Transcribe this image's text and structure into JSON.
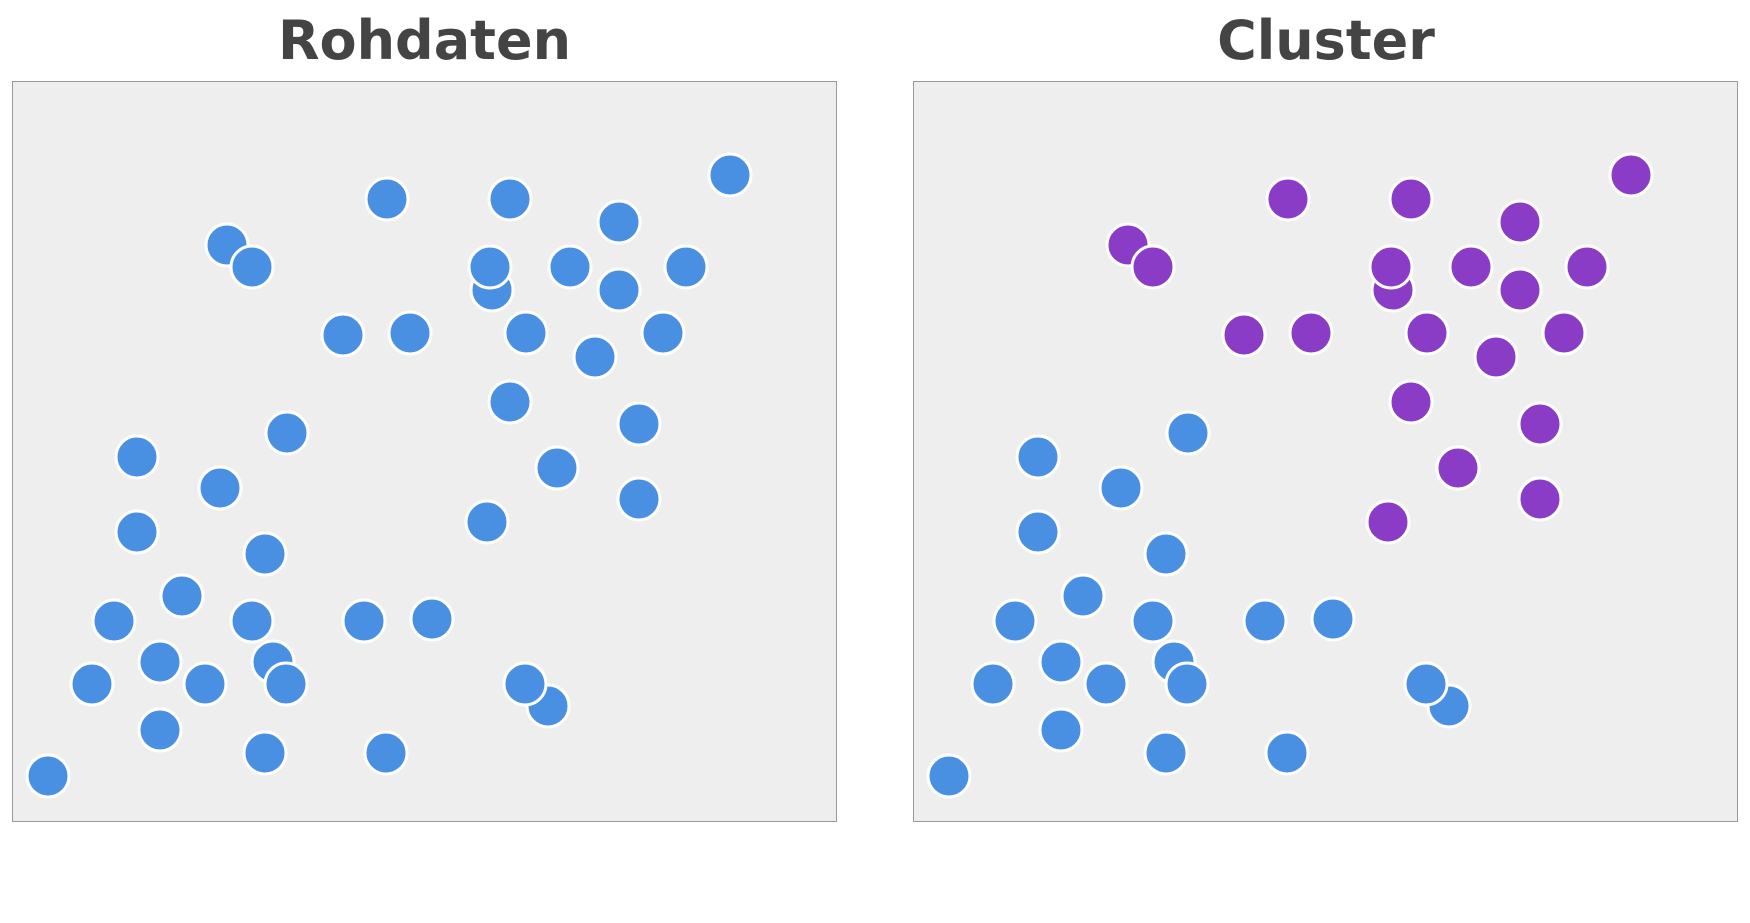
{
  "chart_data": [
    {
      "type": "scatter",
      "title": "Rohdaten",
      "xlim": [
        0,
        825
      ],
      "ylim": [
        0,
        741
      ],
      "colors": {
        "background": "#eeeeee",
        "border": "#999999",
        "point": "#4a90e2",
        "outline": "#ffffff"
      },
      "points": [
        {
          "x": 718,
          "y": 647
        },
        {
          "x": 375,
          "y": 623
        },
        {
          "x": 498,
          "y": 623
        },
        {
          "x": 607,
          "y": 600
        },
        {
          "x": 215,
          "y": 577
        },
        {
          "x": 240,
          "y": 555
        },
        {
          "x": 480,
          "y": 532
        },
        {
          "x": 478,
          "y": 555
        },
        {
          "x": 558,
          "y": 555
        },
        {
          "x": 607,
          "y": 532
        },
        {
          "x": 674,
          "y": 555
        },
        {
          "x": 331,
          "y": 487
        },
        {
          "x": 398,
          "y": 489
        },
        {
          "x": 514,
          "y": 489
        },
        {
          "x": 583,
          "y": 465
        },
        {
          "x": 651,
          "y": 489
        },
        {
          "x": 498,
          "y": 420
        },
        {
          "x": 627,
          "y": 398
        },
        {
          "x": 275,
          "y": 389
        },
        {
          "x": 125,
          "y": 365
        },
        {
          "x": 208,
          "y": 334
        },
        {
          "x": 545,
          "y": 354
        },
        {
          "x": 627,
          "y": 323
        },
        {
          "x": 125,
          "y": 290
        },
        {
          "x": 253,
          "y": 268
        },
        {
          "x": 475,
          "y": 300
        },
        {
          "x": 170,
          "y": 226
        },
        {
          "x": 102,
          "y": 201
        },
        {
          "x": 240,
          "y": 201
        },
        {
          "x": 352,
          "y": 201
        },
        {
          "x": 420,
          "y": 203
        },
        {
          "x": 148,
          "y": 160
        },
        {
          "x": 193,
          "y": 138
        },
        {
          "x": 261,
          "y": 160
        },
        {
          "x": 274,
          "y": 138
        },
        {
          "x": 80,
          "y": 138
        },
        {
          "x": 536,
          "y": 116
        },
        {
          "x": 513,
          "y": 138
        },
        {
          "x": 148,
          "y": 92
        },
        {
          "x": 253,
          "y": 69
        },
        {
          "x": 374,
          "y": 69
        },
        {
          "x": 36,
          "y": 46
        }
      ]
    },
    {
      "type": "scatter",
      "title": "Cluster",
      "xlim": [
        0,
        825
      ],
      "ylim": [
        0,
        741
      ],
      "colors": {
        "background": "#eeeeee",
        "border": "#999999",
        "outline": "#ffffff",
        "cluster_1": "#8a3cc6",
        "cluster_2": "#4a90e2"
      },
      "points": [
        {
          "x": 718,
          "y": 647,
          "cluster": 1
        },
        {
          "x": 375,
          "y": 623,
          "cluster": 1
        },
        {
          "x": 498,
          "y": 623,
          "cluster": 1
        },
        {
          "x": 607,
          "y": 600,
          "cluster": 1
        },
        {
          "x": 215,
          "y": 577,
          "cluster": 1
        },
        {
          "x": 240,
          "y": 555,
          "cluster": 1
        },
        {
          "x": 480,
          "y": 532,
          "cluster": 1
        },
        {
          "x": 478,
          "y": 555,
          "cluster": 1
        },
        {
          "x": 558,
          "y": 555,
          "cluster": 1
        },
        {
          "x": 607,
          "y": 532,
          "cluster": 1
        },
        {
          "x": 674,
          "y": 555,
          "cluster": 1
        },
        {
          "x": 331,
          "y": 487,
          "cluster": 1
        },
        {
          "x": 398,
          "y": 489,
          "cluster": 1
        },
        {
          "x": 514,
          "y": 489,
          "cluster": 1
        },
        {
          "x": 583,
          "y": 465,
          "cluster": 1
        },
        {
          "x": 651,
          "y": 489,
          "cluster": 1
        },
        {
          "x": 498,
          "y": 420,
          "cluster": 1
        },
        {
          "x": 627,
          "y": 398,
          "cluster": 1
        },
        {
          "x": 275,
          "y": 389,
          "cluster": 2
        },
        {
          "x": 125,
          "y": 365,
          "cluster": 2
        },
        {
          "x": 208,
          "y": 334,
          "cluster": 2
        },
        {
          "x": 545,
          "y": 354,
          "cluster": 1
        },
        {
          "x": 627,
          "y": 323,
          "cluster": 1
        },
        {
          "x": 125,
          "y": 290,
          "cluster": 2
        },
        {
          "x": 253,
          "y": 268,
          "cluster": 2
        },
        {
          "x": 475,
          "y": 300,
          "cluster": 1
        },
        {
          "x": 170,
          "y": 226,
          "cluster": 2
        },
        {
          "x": 102,
          "y": 201,
          "cluster": 2
        },
        {
          "x": 240,
          "y": 201,
          "cluster": 2
        },
        {
          "x": 352,
          "y": 201,
          "cluster": 2
        },
        {
          "x": 420,
          "y": 203,
          "cluster": 2
        },
        {
          "x": 148,
          "y": 160,
          "cluster": 2
        },
        {
          "x": 193,
          "y": 138,
          "cluster": 2
        },
        {
          "x": 261,
          "y": 160,
          "cluster": 2
        },
        {
          "x": 274,
          "y": 138,
          "cluster": 2
        },
        {
          "x": 80,
          "y": 138,
          "cluster": 2
        },
        {
          "x": 536,
          "y": 116,
          "cluster": 2
        },
        {
          "x": 513,
          "y": 138,
          "cluster": 2
        },
        {
          "x": 148,
          "y": 92,
          "cluster": 2
        },
        {
          "x": 253,
          "y": 69,
          "cluster": 2
        },
        {
          "x": 374,
          "y": 69,
          "cluster": 2
        },
        {
          "x": 36,
          "y": 46,
          "cluster": 2
        }
      ]
    }
  ]
}
